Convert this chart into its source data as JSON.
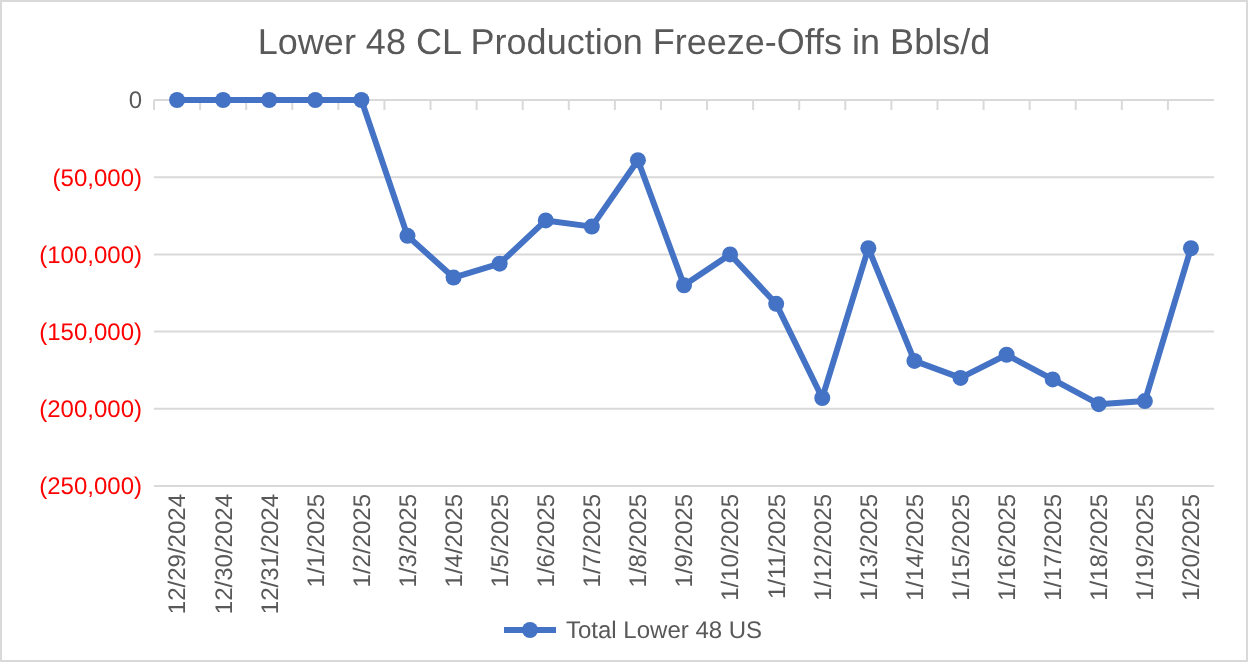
{
  "chart_data": {
    "type": "line",
    "title": "Lower 48 CL Production Freeze-Offs in Bbls/d",
    "categories": [
      "12/29/2024",
      "12/30/2024",
      "12/31/2024",
      "1/1/2025",
      "1/2/2025",
      "1/3/2025",
      "1/4/2025",
      "1/5/2025",
      "1/6/2025",
      "1/7/2025",
      "1/8/2025",
      "1/9/2025",
      "1/10/2025",
      "1/11/2025",
      "1/12/2025",
      "1/13/2025",
      "1/14/2025",
      "1/15/2025",
      "1/16/2025",
      "1/17/2025",
      "1/18/2025",
      "1/19/2025",
      "1/20/2025"
    ],
    "series": [
      {
        "name": "Total Lower 48 US",
        "color": "#4472c4",
        "values": [
          0,
          0,
          0,
          0,
          0,
          -88000,
          -115000,
          -106000,
          -78000,
          -82000,
          -39000,
          -120000,
          -100000,
          -132000,
          -193000,
          -96000,
          -169000,
          -180000,
          -165000,
          -181000,
          -197000,
          -195000,
          -96000
        ]
      }
    ],
    "ylim": [
      -250000,
      0
    ],
    "yticks": [
      0,
      {
        "value": -50000,
        "label": "(50,000)"
      },
      {
        "value": -100000,
        "label": "(100,000)"
      },
      {
        "value": -150000,
        "label": "(150,000)"
      },
      {
        "value": -200000,
        "label": "(200,000)"
      },
      {
        "value": -250000,
        "label": "(250,000)"
      }
    ],
    "grid": "y",
    "legend": "bottom",
    "marker": "circle",
    "line_style": "solid"
  }
}
